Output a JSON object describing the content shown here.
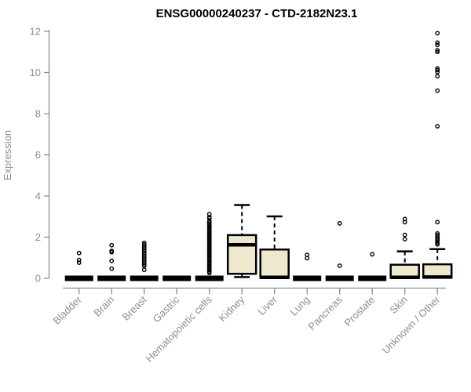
{
  "title": "ENSG00000240237 - CTD-2182N23.1",
  "colors": {
    "box_fill": "#eee8cd",
    "box_stroke": "#000000",
    "axis": "#8e8e8e",
    "title_text": "#000000",
    "background": "#ffffff"
  },
  "chart_data": {
    "type": "boxplot",
    "title": "ENSG00000240237 - CTD-2182N23.1",
    "xlabel": "",
    "ylabel": "Expression",
    "ylim": [
      0,
      12
    ],
    "yticks": [
      0,
      2,
      4,
      6,
      8,
      10,
      12
    ],
    "grid": false,
    "legend": "none",
    "categories": [
      "Bladder",
      "Brain",
      "Breast",
      "Gastric",
      "Hematopoietic cells",
      "Kidney",
      "Liver",
      "Lung",
      "Pancreas",
      "Prostate",
      "Skin",
      "Unknown / Other"
    ],
    "series": [
      {
        "name": "Bladder",
        "q1": 0,
        "median": 0,
        "q3": 0,
        "whisker_low": 0,
        "whisker_high": 0,
        "outliers": [
          1.23,
          0.89,
          0.76
        ]
      },
      {
        "name": "Brain",
        "q1": 0,
        "median": 0,
        "q3": 0,
        "whisker_low": 0,
        "whisker_high": 0,
        "outliers": [
          1.61,
          1.33,
          1.27,
          0.85,
          0.47
        ]
      },
      {
        "name": "Breast",
        "q1": 0,
        "median": 0,
        "q3": 0,
        "whisker_low": 0,
        "whisker_high": 0,
        "outliers": [
          1.72,
          1.64,
          1.56,
          1.48,
          1.4,
          1.32,
          1.24,
          1.16,
          1.08,
          1.0,
          0.92,
          0.84,
          0.76,
          0.68,
          0.6,
          0.41
        ]
      },
      {
        "name": "Gastric",
        "q1": 0,
        "median": 0,
        "q3": 0,
        "whisker_low": 0,
        "whisker_high": 0,
        "outliers": []
      },
      {
        "name": "Hematopoietic cells",
        "q1": 0,
        "median": 0,
        "q3": 0,
        "whisker_low": 0,
        "whisker_high": 0,
        "outliers": [
          3.12,
          2.97,
          2.92,
          2.78,
          2.71,
          2.64,
          2.57,
          2.5,
          2.43,
          2.36,
          2.29,
          2.22,
          2.15,
          2.08,
          2.01,
          1.94,
          1.87,
          1.8,
          1.73,
          1.66,
          1.59,
          1.52,
          1.45,
          1.38,
          1.31,
          1.24,
          1.17,
          1.1,
          1.03,
          0.96,
          0.89,
          0.82,
          0.75,
          0.68,
          0.61,
          0.54,
          0.47,
          0.4,
          0.33,
          0.26
        ]
      },
      {
        "name": "Kidney",
        "q1": 0.22,
        "median": 1.63,
        "q3": 2.1,
        "whisker_low": 0.06,
        "whisker_high": 3.56,
        "outliers": []
      },
      {
        "name": "Liver",
        "q1": 0.02,
        "median": 0.05,
        "q3": 1.4,
        "whisker_low": 0,
        "whisker_high": 3.01,
        "outliers": []
      },
      {
        "name": "Lung",
        "q1": 0,
        "median": 0,
        "q3": 0,
        "whisker_low": 0,
        "whisker_high": 0,
        "outliers": [
          1.14,
          0.98
        ]
      },
      {
        "name": "Pancreas",
        "q1": 0,
        "median": 0,
        "q3": 0,
        "whisker_low": 0,
        "whisker_high": 0,
        "outliers": [
          2.67,
          0.61
        ]
      },
      {
        "name": "Prostate",
        "q1": 0,
        "median": 0,
        "q3": 0,
        "whisker_low": 0,
        "whisker_high": 0,
        "outliers": [
          1.17
        ]
      },
      {
        "name": "Skin",
        "q1": 0.02,
        "median": 0.05,
        "q3": 0.66,
        "whisker_low": 0,
        "whisker_high": 1.31,
        "outliers": [
          2.88,
          2.73,
          2.11,
          1.9
        ]
      },
      {
        "name": "Unknown / Other",
        "q1": 0.03,
        "median": 0.06,
        "q3": 0.68,
        "whisker_low": 0,
        "whisker_high": 1.42,
        "outliers": [
          11.91,
          11.45,
          11.34,
          11.08,
          11.0,
          10.2,
          10.12,
          10.03,
          9.82,
          9.12,
          7.39,
          2.73,
          2.18,
          2.1,
          2.02,
          1.94,
          1.86,
          1.79,
          1.72,
          1.65
        ]
      }
    ]
  }
}
